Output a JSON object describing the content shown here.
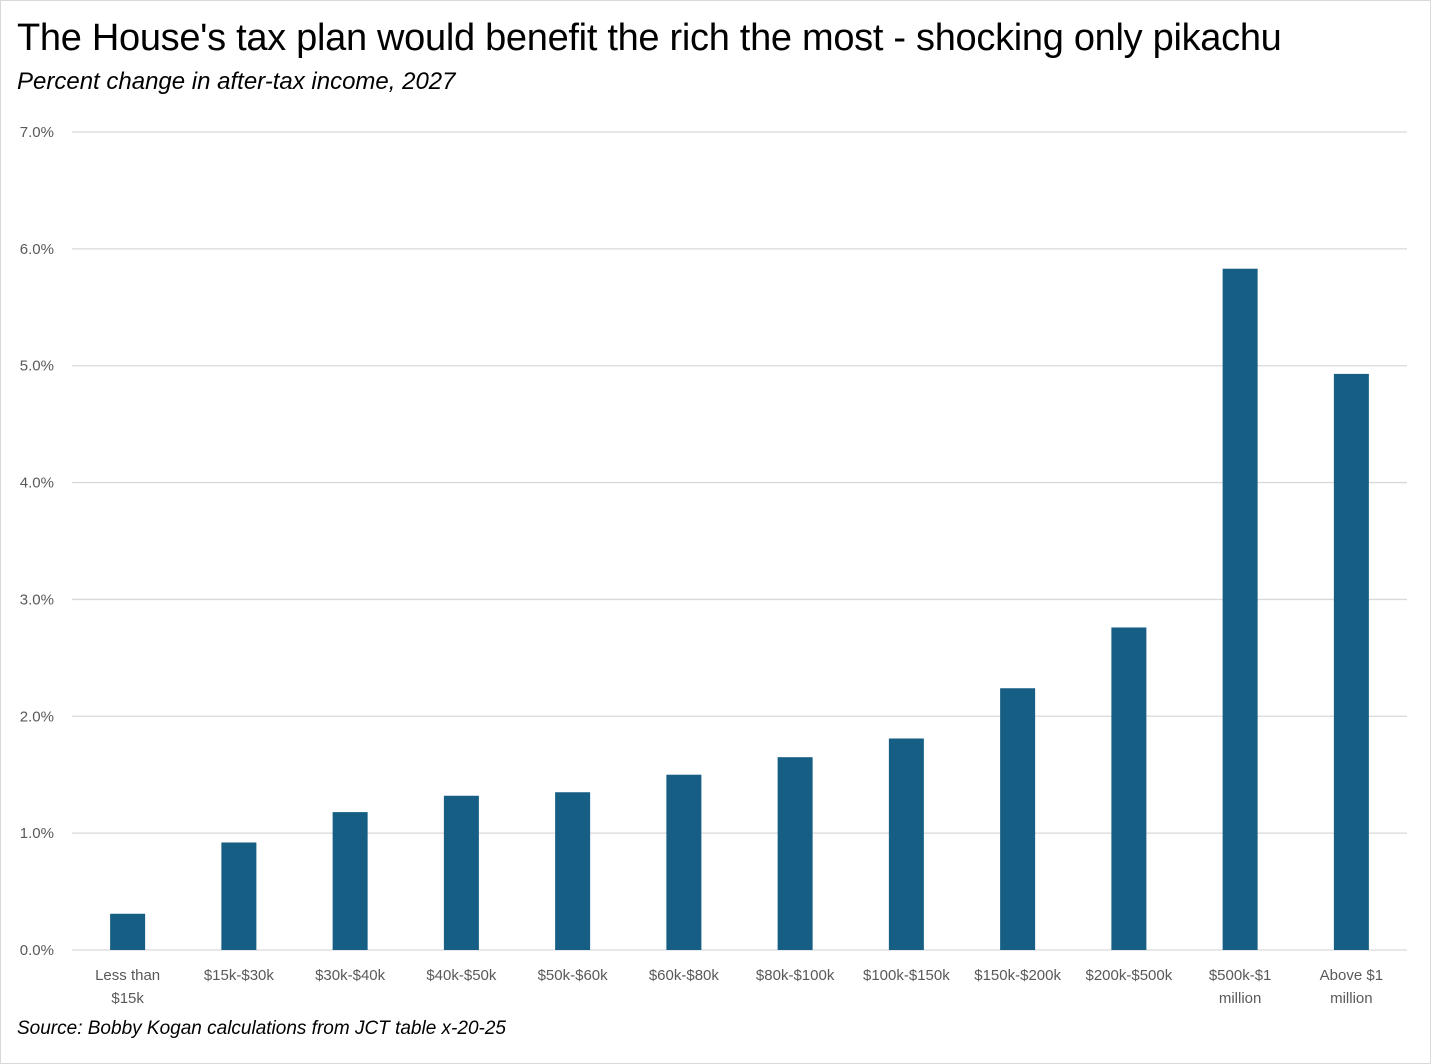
{
  "chart_data": {
    "type": "bar",
    "title": "The House's tax plan would benefit the rich the most - shocking only pikachu",
    "subtitle": "Percent change in after-tax income, 2027",
    "source": "Source: Bobby Kogan calculations from JCT table x-20-25",
    "categories": [
      [
        "Less than",
        "$15k"
      ],
      [
        "$15k-$30k"
      ],
      [
        "$30k-$40k"
      ],
      [
        "$40k-$50k"
      ],
      [
        "$50k-$60k"
      ],
      [
        "$60k-$80k"
      ],
      [
        "$80k-$100k"
      ],
      [
        "$100k-$150k"
      ],
      [
        "$150k-$200k"
      ],
      [
        "$200k-$500k"
      ],
      [
        "$500k-$1",
        "million"
      ],
      [
        "Above $1",
        "million"
      ]
    ],
    "values": [
      0.31,
      0.92,
      1.18,
      1.32,
      1.35,
      1.5,
      1.65,
      1.81,
      2.24,
      2.76,
      5.83,
      4.93
    ],
    "ylim": [
      0,
      7
    ],
    "yticks": [
      "0.0%",
      "1.0%",
      "2.0%",
      "3.0%",
      "4.0%",
      "5.0%",
      "6.0%",
      "7.0%"
    ],
    "xlabel": "",
    "ylabel": "",
    "grid": true,
    "legend": "none",
    "bar_color": "#165e83",
    "grid_color": "#d9d9d9"
  }
}
